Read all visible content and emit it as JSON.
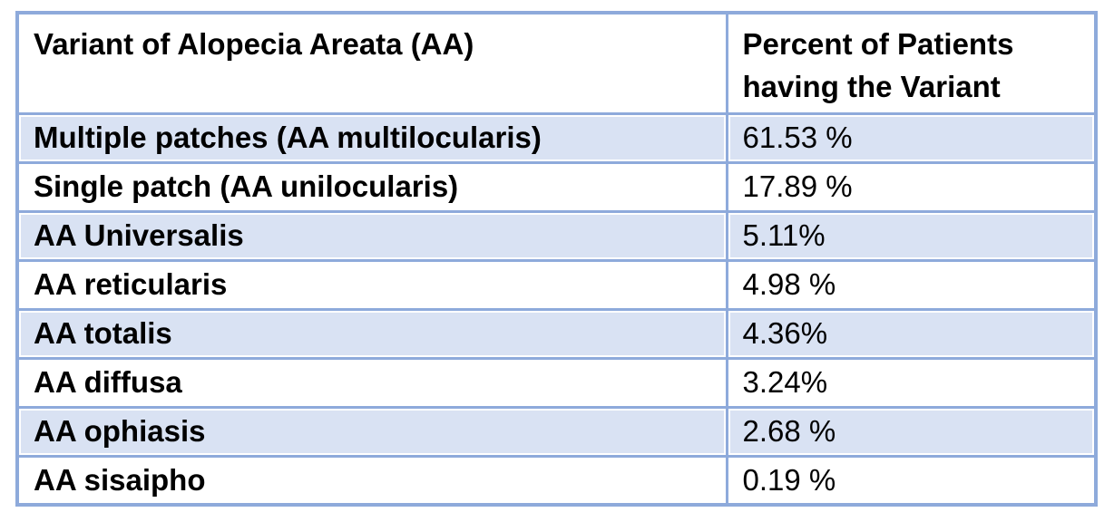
{
  "document": {
    "background_color": "#FFFFFF",
    "type": "table-screenshot"
  },
  "table": {
    "columns": [
      {
        "label": "Variant of Alopecia Areata (AA)"
      },
      {
        "label": "Percent of Patients having the Variant"
      }
    ],
    "rows": [
      {
        "variant": "Multiple patches (AA multilocularis)",
        "percent": "61.53 %"
      },
      {
        "variant": "Single patch (AA unilocularis)",
        "percent": "17.89 %"
      },
      {
        "variant": "AA Universalis",
        "percent": "5.11%"
      },
      {
        "variant": "AA reticularis",
        "percent": "4.98 %"
      },
      {
        "variant": "AA totalis",
        "percent": "4.36%"
      },
      {
        "variant": "AA diffusa",
        "percent": "3.24%"
      },
      {
        "variant": "AA ophiasis",
        "percent": "2.68 %"
      },
      {
        "variant": "AA sisaipho",
        "percent": "0.19 %"
      }
    ],
    "colors": {
      "border": "#8EAADB",
      "banded_row_fill": "#D9E2F3",
      "plain_row_fill": "#FFFFFF",
      "text": "#000000"
    }
  },
  "chart_data": {
    "type": "table",
    "title": "",
    "columns": [
      "Variant of Alopecia Areata (AA)",
      "Percent of Patients having the Variant"
    ],
    "categories": [
      "Multiple patches (AA multilocularis)",
      "Single patch (AA unilocularis)",
      "AA Universalis",
      "AA reticularis",
      "AA totalis",
      "AA diffusa",
      "AA ophiasis",
      "AA sisaipho"
    ],
    "values": [
      61.53,
      17.89,
      5.11,
      4.98,
      4.36,
      3.24,
      2.68,
      0.19
    ],
    "value_unit": "%"
  }
}
